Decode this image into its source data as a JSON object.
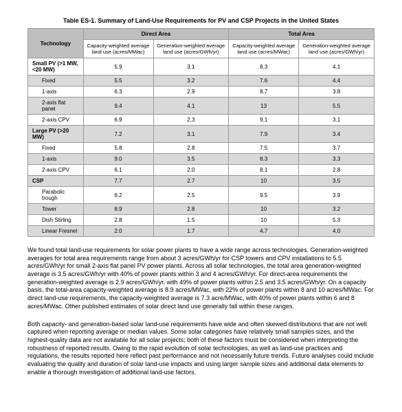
{
  "title": "Table ES-1. Summary of Land-Use Requirements for PV and CSP Projects in the United States",
  "headers": {
    "tech": "Technology",
    "direct": "Direct Area",
    "total": "Total Area",
    "cap": "Capacity-weighted average land use (acres/MWac)",
    "gen": "Generation-weighted average land use (acres/GWh/yr)"
  },
  "sections": [
    {
      "label": "Small PV (>1 MW, <20 MW)",
      "vals": [
        "5.9",
        "3.1",
        "8.3",
        "4.1"
      ],
      "shade": false,
      "bold": true
    },
    {
      "label": "Fixed",
      "vals": [
        "5.5",
        "3.2",
        "7.6",
        "4.4"
      ],
      "shade": true,
      "bold": false
    },
    {
      "label": "1-axis",
      "vals": [
        "6.3",
        "2.9",
        "8.7",
        "3.8"
      ],
      "shade": false,
      "bold": false
    },
    {
      "label": "2-axis flat panel",
      "vals": [
        "9.4",
        "4.1",
        "13",
        "5.5"
      ],
      "shade": true,
      "bold": false
    },
    {
      "label": "2-axis CPV",
      "vals": [
        "6.9",
        "2.3",
        "9.1",
        "3.1"
      ],
      "shade": false,
      "bold": false
    },
    {
      "label": "Large PV (>20 MW)",
      "vals": [
        "7.2",
        "3.1",
        "7.9",
        "3.4"
      ],
      "shade": true,
      "bold": true
    },
    {
      "label": "Fixed",
      "vals": [
        "5.8",
        "2.8",
        "7.5",
        "3.7"
      ],
      "shade": false,
      "bold": false
    },
    {
      "label": "1-axis",
      "vals": [
        "9.0",
        "3.5",
        "8.3",
        "3.3"
      ],
      "shade": true,
      "bold": false
    },
    {
      "label": "2-axis CPV",
      "vals": [
        "6.1",
        "2.0",
        "8.1",
        "2.8"
      ],
      "shade": false,
      "bold": false
    },
    {
      "label": "CSP",
      "vals": [
        "7.7",
        "2.7",
        "10",
        "3.5"
      ],
      "shade": true,
      "bold": true
    },
    {
      "label": "Parabolic trough",
      "vals": [
        "6.2",
        "2.5",
        "9.5",
        "3.9"
      ],
      "shade": false,
      "bold": false
    },
    {
      "label": "Tower",
      "vals": [
        "8.9",
        "2.8",
        "10",
        "3.2"
      ],
      "shade": true,
      "bold": false
    },
    {
      "label": "Dish Stirling",
      "vals": [
        "2.8",
        "1.5",
        "10",
        "5.3"
      ],
      "shade": false,
      "bold": false
    },
    {
      "label": "Linear Fresnel",
      "vals": [
        "2.0",
        "1.7",
        "4.7",
        "4.0"
      ],
      "shade": true,
      "bold": false
    }
  ],
  "para1": "We found total land-use requirements for solar power plants to have a wide range across technologies. Generation-weighted averages for total area requirements range from about 3 acres/GWh/yr for CSP towers and CPV installations to 5.5 acres/GWh/yr for small 2-axis flat panel PV power plants. Across all solar technologies, the total area generation-weighted average is 3.5 acres/GWh/yr with 40% of power plants within 3 and 4 acres/GWh/yr. For direct-area requirements the generation-weighted average is 2.9 acres/GWh/yr, with 49% of power plants within 2.5 and 3.5 acres/GWh/yr. On a capacity basis, the total-area capacity-weighted average is 8.9 acres/MWac, with 22% of power plants within 8 and 10 acres/MWac. For direct land-use requirements, the capacity-weighted average is 7.3 acre/MWac, with 40% of power plants within 6 and 8 acres/MWac. Other published estimates of solar direct land use generally fall within these ranges.",
  "para2": "Both capacity- and generation-based solar land-use requirements have wide and often skewed distributions that are not well captured when reporting average or median values. Some solar categories have relatively small samples sizes, and the highest-quality data are not available for all solar projects; both of these factors must be considered when interpreting the robustness of reported results. Owing to the rapid evolution of solar technologies, as well as land-use practices and regulations, the results reported here reflect past performance and not necessarily future trends. Future analyses could include evaluating the quality and duration of solar land-use impacts and using larger sample sizes and additional data elements to enable a thorough investigation of additional land-use factors."
}
